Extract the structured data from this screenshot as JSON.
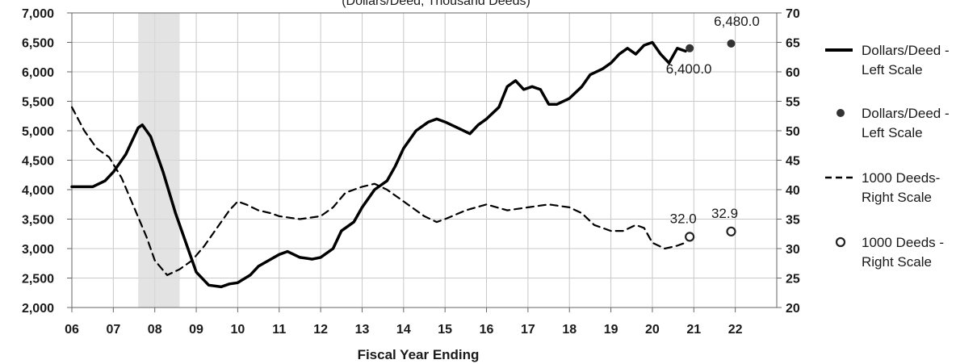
{
  "chart_data": {
    "type": "line",
    "subtitle": "(Dollars/Deed, Thousand Deeds)",
    "xlabel": "Fiscal Year Ending",
    "x_range": [
      6,
      23
    ],
    "y_left_range": [
      2000,
      7000
    ],
    "y_right_range": [
      20,
      70
    ],
    "x_ticks": [
      "06",
      "07",
      "08",
      "09",
      "10",
      "11",
      "12",
      "13",
      "14",
      "15",
      "16",
      "17",
      "18",
      "19",
      "20",
      "21",
      "22"
    ],
    "y_left_ticks": [
      "2,000",
      "2,500",
      "3,000",
      "3,500",
      "4,000",
      "4,500",
      "5,000",
      "5,500",
      "6,000",
      "6,500",
      "7,000"
    ],
    "y_right_ticks": [
      "20",
      "25",
      "30",
      "35",
      "40",
      "45",
      "50",
      "55",
      "60",
      "65",
      "70"
    ],
    "grid": true,
    "legend_position": "right",
    "recession_shading": {
      "from": 7.6,
      "to": 8.6
    },
    "series": [
      {
        "name": "Dollars/Deed - Left Scale",
        "axis": "left",
        "style": "solid",
        "x": [
          6.0,
          6.5,
          6.8,
          7.0,
          7.3,
          7.6,
          7.7,
          7.9,
          8.2,
          8.5,
          8.8,
          9.0,
          9.3,
          9.6,
          9.8,
          10.0,
          10.3,
          10.5,
          10.8,
          11.0,
          11.2,
          11.5,
          11.8,
          12.0,
          12.3,
          12.5,
          12.8,
          13.0,
          13.3,
          13.6,
          13.8,
          14.0,
          14.3,
          14.6,
          14.8,
          15.0,
          15.3,
          15.6,
          15.8,
          16.0,
          16.3,
          16.5,
          16.7,
          16.9,
          17.1,
          17.3,
          17.5,
          17.7,
          18.0,
          18.3,
          18.5,
          18.8,
          19.0,
          19.2,
          19.4,
          19.6,
          19.8,
          20.0,
          20.2,
          20.4,
          20.6,
          20.8
        ],
        "values": [
          4050,
          4050,
          4150,
          4300,
          4600,
          5050,
          5100,
          4900,
          4300,
          3600,
          3000,
          2600,
          2380,
          2350,
          2400,
          2420,
          2550,
          2700,
          2820,
          2900,
          2950,
          2850,
          2820,
          2850,
          3000,
          3300,
          3450,
          3700,
          4000,
          4150,
          4400,
          4700,
          5000,
          5150,
          5200,
          5150,
          5050,
          4950,
          5100,
          5200,
          5400,
          5750,
          5850,
          5700,
          5750,
          5700,
          5450,
          5450,
          5550,
          5750,
          5950,
          6050,
          6150,
          6300,
          6400,
          6300,
          6450,
          6500,
          6300,
          6150,
          6400,
          6350
        ]
      },
      {
        "name": "Dollars/Deed - Left Scale",
        "axis": "left",
        "style": "marker-filled",
        "x": [
          20.9,
          21.9
        ],
        "values": [
          6400.0,
          6480.0
        ],
        "labels": [
          "6,400.0",
          "6,480.0"
        ]
      },
      {
        "name": "1000 Deeds- Right Scale",
        "axis": "right",
        "style": "dashed",
        "x": [
          6.0,
          6.3,
          6.6,
          6.9,
          7.2,
          7.5,
          7.8,
          8.0,
          8.3,
          8.6,
          8.9,
          9.2,
          9.5,
          9.8,
          10.0,
          10.2,
          10.5,
          10.8,
          11.0,
          11.5,
          12.0,
          12.3,
          12.6,
          13.0,
          13.3,
          13.6,
          13.9,
          14.2,
          14.5,
          14.8,
          15.0,
          15.5,
          16.0,
          16.5,
          17.0,
          17.5,
          18.0,
          18.3,
          18.6,
          19.0,
          19.3,
          19.6,
          19.8,
          20.0,
          20.3,
          20.6,
          20.8
        ],
        "values": [
          54,
          50,
          47,
          45.5,
          42,
          37,
          32,
          28,
          25.5,
          26.5,
          28,
          30.5,
          33.5,
          36.5,
          38,
          37.5,
          36.5,
          36,
          35.5,
          35,
          35.5,
          37,
          39.5,
          40.5,
          41,
          40,
          38.5,
          37,
          35.5,
          34.5,
          35,
          36.5,
          37.5,
          36.5,
          37,
          37.5,
          37,
          36,
          34,
          33,
          33,
          34,
          33.5,
          31,
          30,
          30.5,
          31
        ]
      },
      {
        "name": "1000 Deeds - Right Scale",
        "axis": "right",
        "style": "marker-open",
        "x": [
          20.9,
          21.9
        ],
        "values": [
          32.0,
          32.9
        ],
        "labels": [
          "32.0",
          "32.9"
        ]
      }
    ],
    "legend": [
      {
        "label_lines": [
          "Dollars/Deed -",
          "Left Scale"
        ],
        "style": "solid"
      },
      {
        "label_lines": [
          "Dollars/Deed -",
          "Left Scale"
        ],
        "style": "marker-filled"
      },
      {
        "label_lines": [
          "1000 Deeds-",
          "Right Scale"
        ],
        "style": "dashed"
      },
      {
        "label_lines": [
          "1000 Deeds -",
          "Right Scale"
        ],
        "style": "marker-open"
      }
    ]
  }
}
